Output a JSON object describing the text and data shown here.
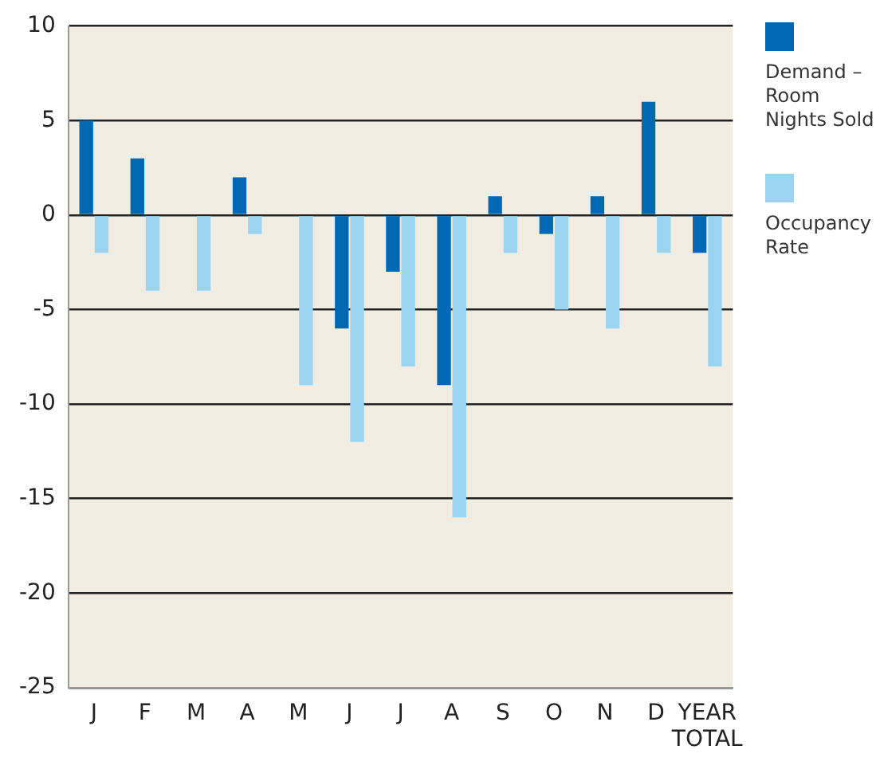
{
  "chart_data": {
    "type": "bar",
    "categories": [
      "J",
      "F",
      "M",
      "A",
      "M",
      "J",
      "J",
      "A",
      "S",
      "O",
      "N",
      "D",
      "YEAR TOTAL"
    ],
    "series": [
      {
        "name": "Demand – Room Nights Sold",
        "color": "#0068b3",
        "values": [
          5,
          3,
          0,
          2,
          0,
          -6,
          -3,
          -9,
          1,
          -1,
          1,
          6,
          -2
        ]
      },
      {
        "name": "Occupancy Rate",
        "color": "#9ad4f0",
        "values": [
          -2,
          -4,
          -4,
          -1,
          -9,
          -12,
          -8,
          -16,
          -2,
          -5,
          -6,
          -2,
          -8
        ]
      }
    ],
    "ylim": [
      -25,
      10
    ],
    "yticks": [
      -25,
      -20,
      -15,
      -10,
      -5,
      0,
      5,
      10
    ],
    "grid": "y",
    "legend": "right"
  }
}
